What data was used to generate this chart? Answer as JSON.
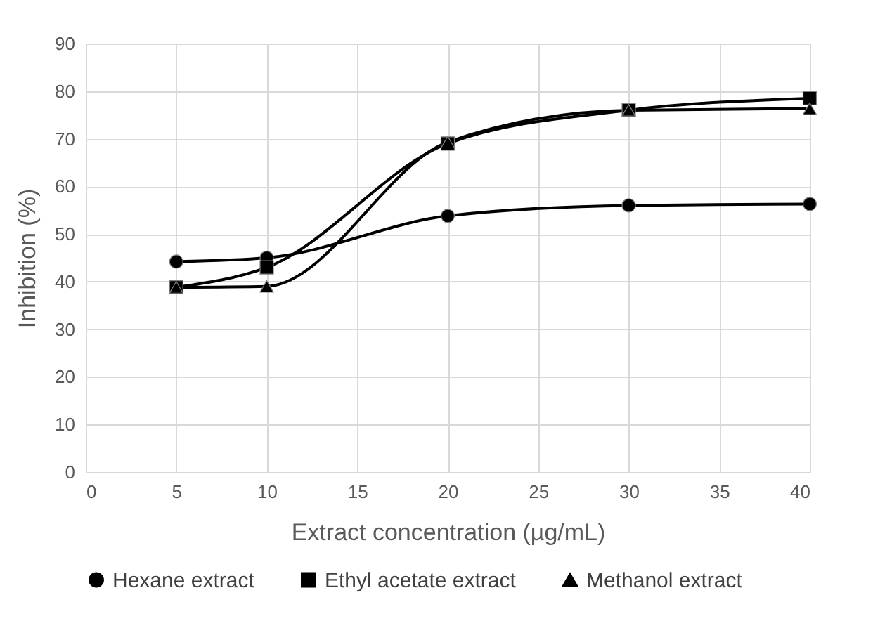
{
  "chart_data": {
    "type": "line",
    "xlabel": "Extract concentration (µg/mL)",
    "ylabel": "Inhibition (%)",
    "x": [
      5,
      10,
      20,
      30,
      40
    ],
    "series": [
      {
        "name": "Hexane extract",
        "color": "#000000",
        "marker": "circle",
        "values": [
          44.2,
          45,
          53.8,
          56,
          56.3
        ]
      },
      {
        "name": "Ethyl acetate extract",
        "color": "#000000",
        "marker": "square",
        "values": [
          38.8,
          43,
          69,
          76,
          78.5
        ]
      },
      {
        "name": "Methanol extract",
        "color": "#000000",
        "marker": "triangle",
        "values": [
          38.8,
          39,
          69.3,
          76,
          76.3
        ]
      }
    ],
    "xlim": [
      0,
      40
    ],
    "xticks": [
      0,
      5,
      10,
      15,
      20,
      25,
      30,
      35,
      40
    ],
    "ylim": [
      0,
      90
    ],
    "yticks": [
      0,
      10,
      20,
      30,
      40,
      50,
      60,
      70,
      80,
      90
    ],
    "grid": true,
    "legend": "bottom",
    "line_style": "solid"
  }
}
